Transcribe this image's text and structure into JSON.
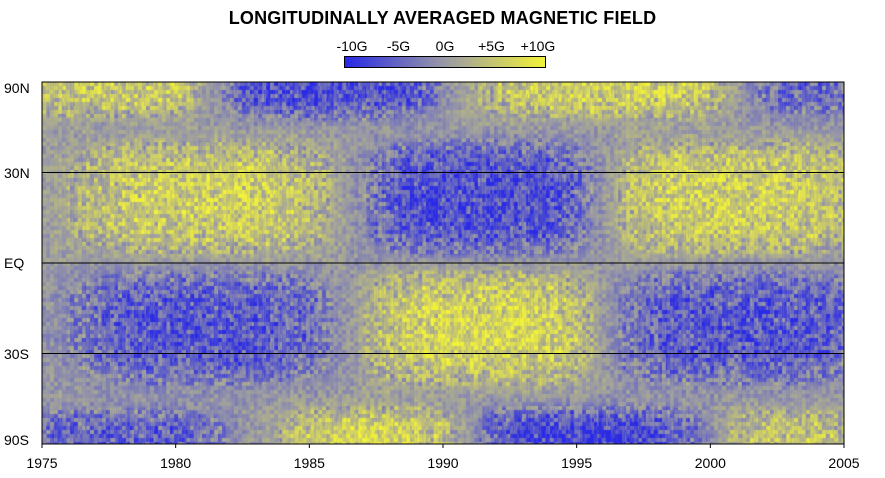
{
  "chart_data": {
    "type": "heatmap",
    "title": "LONGITUDINALLY AVERAGED MAGNETIC FIELD",
    "xlabel": "",
    "ylabel": "",
    "xlim": [
      1975,
      2005
    ],
    "ylim": [
      -90,
      90
    ],
    "x_ticks": [
      {
        "label": "1975",
        "value": 1975
      },
      {
        "label": "1980",
        "value": 1980
      },
      {
        "label": "1985",
        "value": 1985
      },
      {
        "label": "1990",
        "value": 1990
      },
      {
        "label": "1995",
        "value": 1995
      },
      {
        "label": "2000",
        "value": 2000
      },
      {
        "label": "2005",
        "value": 2005
      }
    ],
    "y_ticks": [
      {
        "label": "90N",
        "value": 90
      },
      {
        "label": "30N",
        "value": 30
      },
      {
        "label": "EQ",
        "value": 0
      },
      {
        "label": "30S",
        "value": -30
      },
      {
        "label": "90S",
        "value": -90
      }
    ],
    "y_scale": "sine of latitude",
    "gridlines_at_latitudes": [
      30,
      0,
      -30
    ],
    "colorbar": {
      "range": [
        -10,
        10
      ],
      "units": "G",
      "ticks": [
        {
          "label": "-10G",
          "value": -10
        },
        {
          "label": "-5G",
          "value": -5
        },
        {
          "label": "0G",
          "value": 0
        },
        {
          "label": "+5G",
          "value": 5
        },
        {
          "label": "+10G",
          "value": 10
        }
      ],
      "colors": {
        "negative": "#2a2ae6",
        "zero": "#9a9aa4",
        "positive": "#f2f23a"
      }
    },
    "features": [
      {
        "years": [
          1975,
          1981
        ],
        "lat": [
          60,
          90
        ],
        "field_G": 6
      },
      {
        "years": [
          1975,
          1981
        ],
        "lat": [
          -90,
          -60
        ],
        "field_G": -6
      },
      {
        "years": [
          1982,
          1989
        ],
        "lat": [
          60,
          90
        ],
        "field_G": -8
      },
      {
        "years": [
          1985,
          1991
        ],
        "lat": [
          -90,
          -60
        ],
        "field_G": 8
      },
      {
        "years": [
          1992,
          2001
        ],
        "lat": [
          60,
          90
        ],
        "field_G": 7
      },
      {
        "years": [
          1991,
          1999
        ],
        "lat": [
          -90,
          -60
        ],
        "field_G": -9
      },
      {
        "years": [
          2001,
          2005
        ],
        "lat": [
          60,
          90
        ],
        "field_G": -5
      },
      {
        "years": [
          2001,
          2005
        ],
        "lat": [
          -90,
          -60
        ],
        "field_G": 5
      },
      {
        "years": [
          1977,
          1985
        ],
        "lat": [
          0,
          35
        ],
        "field_G": 7
      },
      {
        "years": [
          1977,
          1985
        ],
        "lat": [
          -35,
          0
        ],
        "field_G": -7
      },
      {
        "years": [
          1988,
          1995
        ],
        "lat": [
          0,
          35
        ],
        "field_G": -8
      },
      {
        "years": [
          1988,
          1995
        ],
        "lat": [
          -35,
          0
        ],
        "field_G": 8
      },
      {
        "years": [
          1997,
          2005
        ],
        "lat": [
          0,
          35
        ],
        "field_G": 7
      },
      {
        "years": [
          1997,
          2005
        ],
        "lat": [
          -35,
          0
        ],
        "field_G": -7
      }
    ]
  }
}
